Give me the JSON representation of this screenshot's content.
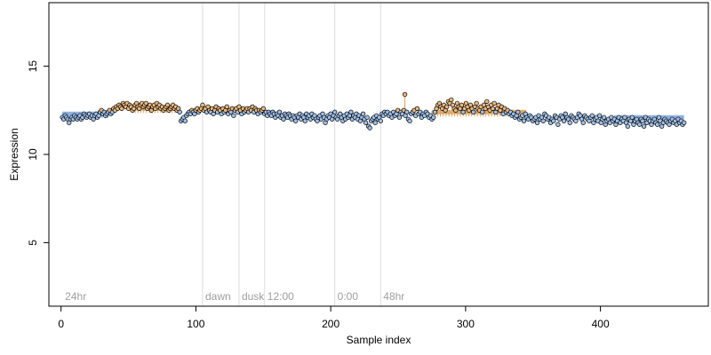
{
  "chart_data": {
    "type": "scatter",
    "title": "",
    "xlabel": "Sample index",
    "ylabel": "Expression",
    "xlim": [
      -9,
      480
    ],
    "ylim": [
      1.4,
      18.6
    ],
    "x_ticks": [
      0,
      100,
      200,
      300,
      400
    ],
    "y_ticks": [
      5,
      10,
      15
    ],
    "grid": false,
    "colors": {
      "point_blue": "#9fbfe8",
      "point_orange": "#e8b77e",
      "point_edge": "#000000",
      "band_blue": "#7fa6d9",
      "band_orange": "#d9a05b",
      "phase_line": "#dddddd",
      "phase_text": "#9e9e9e",
      "spike": "#d9a05b"
    },
    "phase_markers": [
      {
        "label": "24hr",
        "x": 1
      },
      {
        "label": "dawn",
        "x": 105
      },
      {
        "label": "dusk",
        "x": 132
      },
      {
        "label": "12:00",
        "x": 151
      },
      {
        "label": "0:00",
        "x": 203
      },
      {
        "label": "48hr",
        "x": 237
      }
    ],
    "level_segments": [
      {
        "x0": 1,
        "x1": 35,
        "y": 12.3,
        "color": "blue"
      },
      {
        "x0": 35,
        "x1": 50,
        "y": 12.4,
        "color": "none"
      },
      {
        "x0": 55,
        "x1": 88,
        "y": 12.6,
        "color": "orange"
      },
      {
        "x0": 100,
        "x1": 150,
        "y": 12.4,
        "color": "none"
      },
      {
        "x0": 275,
        "x1": 345,
        "y": 12.4,
        "color": "orange"
      },
      {
        "x0": 410,
        "x1": 462,
        "y": 12.1,
        "color": "blue"
      }
    ],
    "highlight": {
      "x": 255,
      "y": 13.4
    },
    "series": [
      {
        "x_start": 1,
        "x_end": 88,
        "values": [
          12.1,
          12.0,
          12.2,
          12.1,
          12.0,
          11.8,
          12.0,
          12.1,
          12.0,
          12.2,
          12.1,
          12.0,
          12.1,
          12.2,
          12.0,
          12.1,
          12.3,
          12.2,
          12.1,
          12.2,
          12.3,
          12.1,
          12.2,
          12.0,
          12.2,
          12.3,
          12.1,
          12.2,
          12.4,
          12.5,
          12.3,
          12.4,
          12.2,
          12.3,
          12.4,
          12.5,
          12.3,
          12.4,
          12.6,
          12.5,
          12.7,
          12.6,
          12.8,
          12.7,
          12.6,
          12.9,
          12.8,
          12.7,
          12.9,
          12.6,
          12.8,
          12.7,
          12.5,
          12.6,
          12.8,
          12.9,
          12.7,
          12.6,
          12.8,
          12.9,
          12.7,
          12.8,
          12.9,
          12.6,
          12.7,
          12.8,
          12.5,
          12.7,
          12.8,
          12.6,
          12.9,
          12.7,
          12.8,
          12.6,
          12.7,
          12.5,
          12.6,
          12.7,
          12.8,
          12.5,
          12.6,
          12.7,
          12.8,
          12.6,
          12.7,
          12.5,
          12.6,
          12.4
        ]
      },
      {
        "x_start": 89,
        "x_end": 240,
        "values": [
          11.9,
          12.0,
          12.1,
          11.9,
          12.2,
          12.3,
          12.4,
          12.3,
          12.5,
          12.4,
          12.3,
          12.5,
          12.6,
          12.4,
          12.5,
          12.6,
          12.8,
          12.5,
          12.6,
          12.4,
          12.7,
          12.5,
          12.4,
          12.6,
          12.3,
          12.5,
          12.7,
          12.4,
          12.6,
          12.5,
          12.3,
          12.6,
          12.4,
          12.5,
          12.7,
          12.3,
          12.5,
          12.4,
          12.6,
          12.2,
          12.5,
          12.6,
          12.4,
          12.7,
          12.5,
          12.3,
          12.6,
          12.4,
          12.5,
          12.6,
          12.4,
          12.6,
          12.5,
          12.7,
          12.4,
          12.6,
          12.5,
          12.3,
          12.5,
          12.4,
          12.5,
          12.6,
          12.3,
          12.4,
          12.2,
          12.4,
          12.3,
          12.2,
          12.4,
          12.3,
          12.1,
          12.3,
          12.2,
          12.4,
          12.1,
          12.2,
          12.0,
          12.3,
          12.2,
          12.1,
          12.3,
          12.2,
          12.0,
          12.2,
          12.1,
          11.9,
          12.2,
          12.1,
          12.3,
          12.0,
          12.2,
          12.1,
          11.9,
          12.3,
          12.1,
          12.2,
          12.0,
          12.3,
          12.1,
          12.2,
          12.0,
          11.9,
          12.1,
          12.2,
          12.0,
          12.3,
          12.1,
          11.8,
          12.0,
          12.2,
          12.1,
          12.3,
          12.0,
          12.2,
          12.4,
          12.1,
          12.0,
          12.2,
          12.3,
          12.1,
          11.9,
          12.2,
          12.0,
          12.3,
          12.1,
          12.2,
          12.4,
          12.0,
          12.2,
          12.1,
          12.3,
          12.0,
          12.2,
          11.9,
          12.1,
          12.3,
          12.0,
          11.8,
          12.1,
          11.6,
          11.5,
          11.9,
          12.0,
          12.1,
          11.8,
          12.2,
          12.0,
          12.1,
          11.9,
          12.3,
          12.2,
          12.4
        ]
      },
      {
        "x_start": 241,
        "x_end": 462,
        "values": [
          12.3,
          12.4,
          12.2,
          12.3,
          12.1,
          12.4,
          12.2,
          12.3,
          12.5,
          12.1,
          12.4,
          12.3,
          12.5,
          12.2,
          12.4,
          12.0,
          11.9,
          12.3,
          12.4,
          12.5,
          12.2,
          12.6,
          12.3,
          12.4,
          12.1,
          12.3,
          12.2,
          12.4,
          12.3,
          12.1,
          12.2,
          12.0,
          12.1,
          12.4,
          12.6,
          12.8,
          12.9,
          12.7,
          12.6,
          12.8,
          12.5,
          12.7,
          13.0,
          12.9,
          13.1,
          12.8,
          12.6,
          12.5,
          12.9,
          12.7,
          12.6,
          12.8,
          12.4,
          12.6,
          12.9,
          12.7,
          12.5,
          12.8,
          12.6,
          12.4,
          12.7,
          12.9,
          12.6,
          12.5,
          12.7,
          12.4,
          12.8,
          12.6,
          13.0,
          12.7,
          12.5,
          12.8,
          12.6,
          12.9,
          12.4,
          12.6,
          12.8,
          12.5,
          12.7,
          12.3,
          12.6,
          12.4,
          12.5,
          12.3,
          12.4,
          12.2,
          12.3,
          12.1,
          12.2,
          12.4,
          12.0,
          12.1,
          12.2,
          11.9,
          12.3,
          12.1,
          12.0,
          12.2,
          12.1,
          11.9,
          12.0,
          12.1,
          11.8,
          12.2,
          12.0,
          12.1,
          11.9,
          12.3,
          12.2,
          12.0,
          12.1,
          11.8,
          12.0,
          11.9,
          12.2,
          12.1,
          11.7,
          12.0,
          12.2,
          12.1,
          11.9,
          12.3,
          12.1,
          12.0,
          11.8,
          12.2,
          12.1,
          12.0,
          11.9,
          12.1,
          12.3,
          12.2,
          12.0,
          11.8,
          12.2,
          12.1,
          12.0,
          11.9,
          12.1,
          12.2,
          11.8,
          12.0,
          12.1,
          11.9,
          12.2,
          11.8,
          12.0,
          12.1,
          11.7,
          11.9,
          12.0,
          11.8,
          12.1,
          11.9,
          12.0,
          11.7,
          11.9,
          12.1,
          11.8,
          12.0,
          11.9,
          12.1,
          11.8,
          11.6,
          12.0,
          11.9,
          12.1,
          11.7,
          11.9,
          12.0,
          11.8,
          11.7,
          12.0,
          11.9,
          11.6,
          12.1,
          11.8,
          12.0,
          11.9,
          11.7,
          11.9,
          12.0,
          11.8,
          11.7,
          12.1,
          11.9,
          11.6,
          11.8,
          12.0,
          11.9,
          11.8,
          11.7,
          11.9,
          12.0,
          11.8,
          11.9,
          11.7,
          12.0,
          11.8,
          11.9,
          11.7,
          11.8
        ]
      }
    ]
  }
}
